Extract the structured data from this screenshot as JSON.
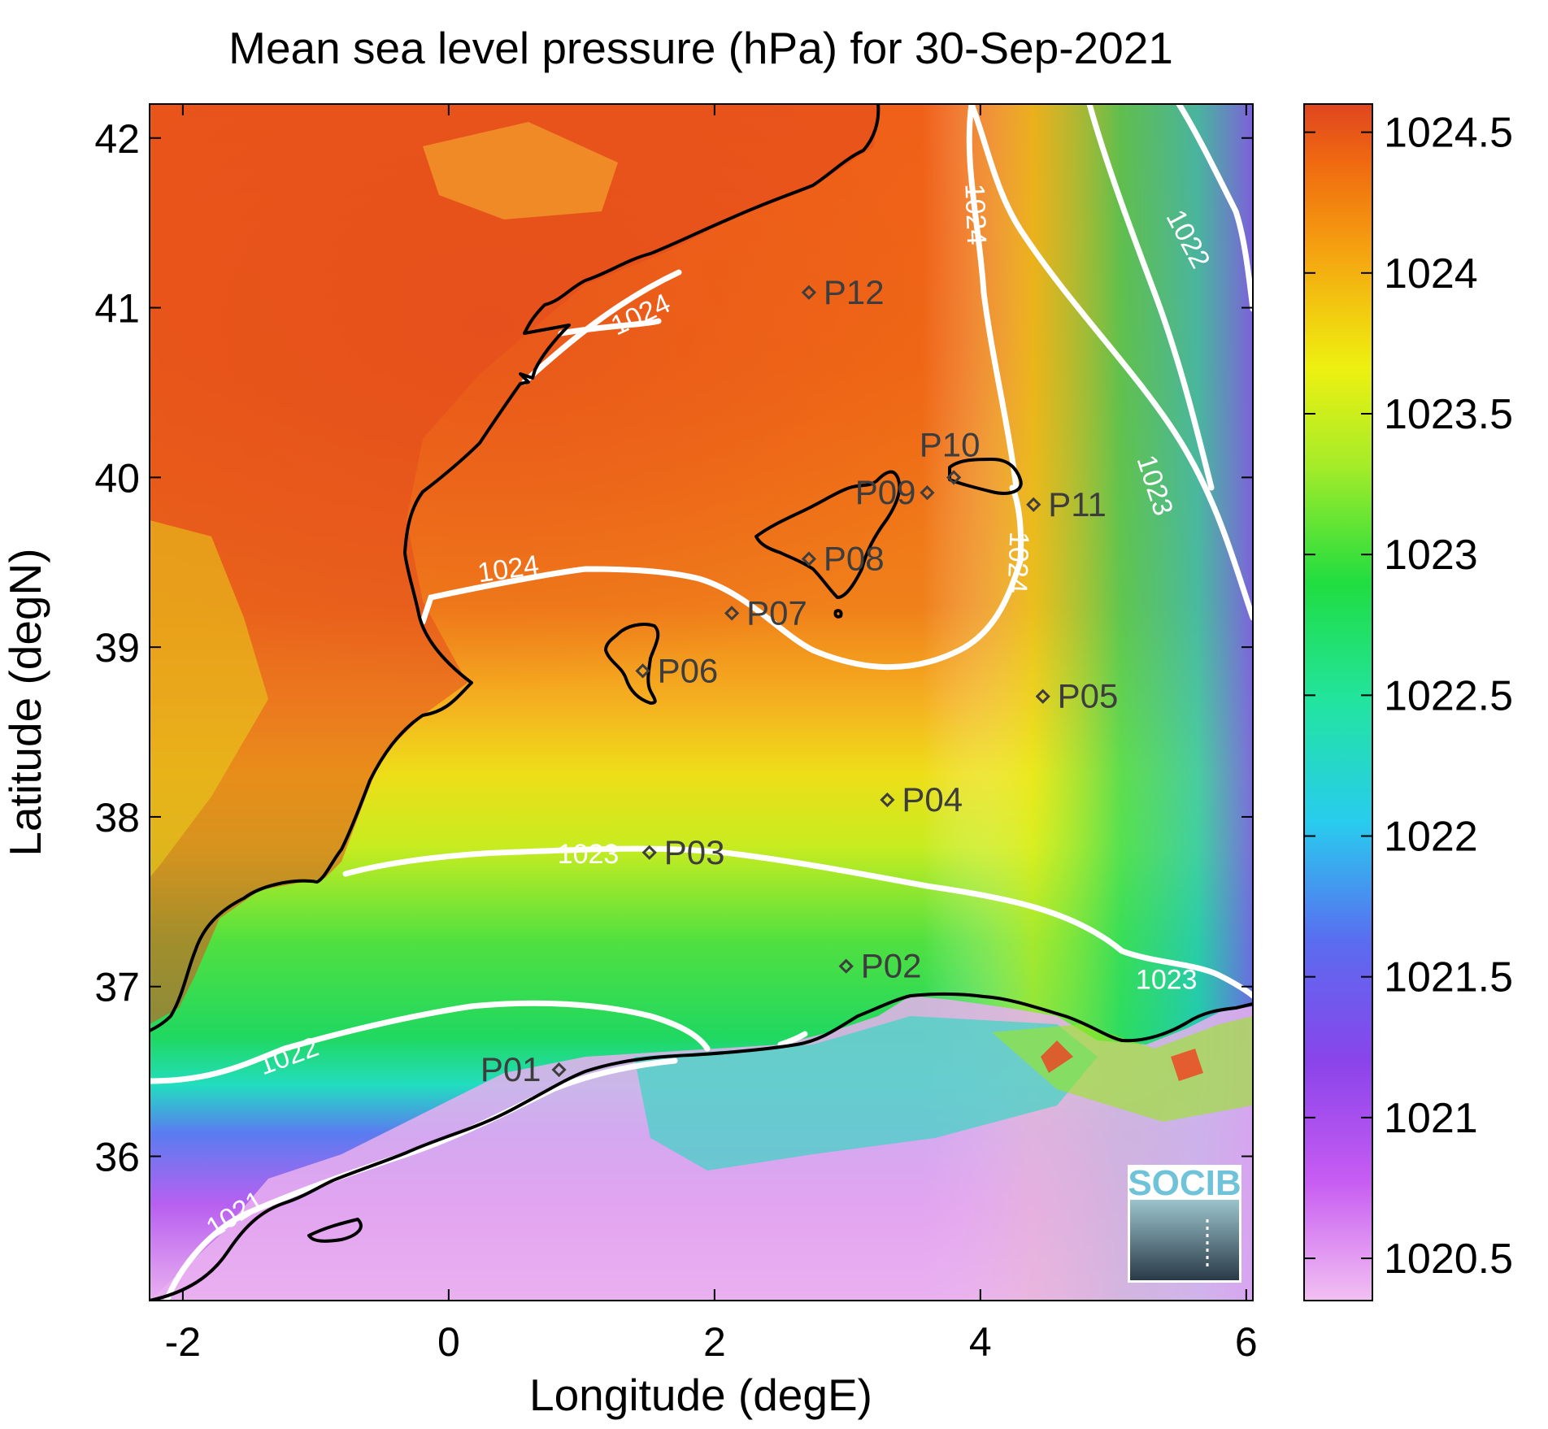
{
  "title": "Mean sea level pressure (hPa) for 30-Sep-2021",
  "xaxis": {
    "label": "Longitude (degE)",
    "ticks": [
      -2,
      0,
      2,
      4,
      6
    ],
    "tick_labels": [
      "-2",
      "0",
      "2",
      "4",
      "6"
    ],
    "range": [
      -2.25,
      6.05
    ]
  },
  "yaxis": {
    "label": "Latitude (degN)",
    "ticks": [
      36,
      37,
      38,
      39,
      40,
      41,
      42
    ],
    "tick_labels": [
      "36",
      "37",
      "38",
      "39",
      "40",
      "41",
      "42"
    ],
    "range": [
      35.15,
      42.2
    ]
  },
  "colorbar": {
    "range": [
      1020.35,
      1024.6
    ],
    "ticks": [
      1020.5,
      1021,
      1021.5,
      1022,
      1022.5,
      1023,
      1023.5,
      1024,
      1024.5
    ],
    "tick_labels": [
      "1020.5",
      "1021",
      "1021.5",
      "1022",
      "1022.5",
      "1023",
      "1023.5",
      "1024",
      "1024.5"
    ],
    "colormap": [
      "#f2c0f2",
      "#c75cf2",
      "#7b3fe6",
      "#4a7cf0",
      "#22ddee",
      "#20dd50",
      "#6ee830",
      "#eef010",
      "#f5a010",
      "#f06a10",
      "#e04520"
    ]
  },
  "stations": [
    {
      "name": "P01",
      "lon": 0.83,
      "lat": 36.51
    },
    {
      "name": "P02",
      "lon": 2.99,
      "lat": 37.12
    },
    {
      "name": "P03",
      "lon": 1.51,
      "lat": 37.79
    },
    {
      "name": "P04",
      "lon": 3.3,
      "lat": 38.1
    },
    {
      "name": "P05",
      "lon": 4.47,
      "lat": 38.71
    },
    {
      "name": "P06",
      "lon": 1.46,
      "lat": 38.86
    },
    {
      "name": "P07",
      "lon": 2.13,
      "lat": 39.2
    },
    {
      "name": "P08",
      "lon": 2.71,
      "lat": 39.52
    },
    {
      "name": "P09",
      "lon": 3.6,
      "lat": 39.91
    },
    {
      "name": "P10",
      "lon": 3.8,
      "lat": 40.0
    },
    {
      "name": "P11",
      "lon": 4.4,
      "lat": 39.84
    },
    {
      "name": "P12",
      "lon": 2.71,
      "lat": 41.09
    }
  ],
  "contour_labels": [
    {
      "text": "1024",
      "lon": 1.45,
      "lat": 40.95,
      "rot": -25
    },
    {
      "text": "1024",
      "lon": 3.95,
      "lat": 41.55,
      "rot": 88
    },
    {
      "text": "1022",
      "lon": 5.55,
      "lat": 41.4,
      "rot": 62
    },
    {
      "text": "1024",
      "lon": 0.45,
      "lat": 39.45,
      "rot": -8
    },
    {
      "text": "1024",
      "lon": 4.27,
      "lat": 39.5,
      "rot": 92
    },
    {
      "text": "1023",
      "lon": 5.3,
      "lat": 39.95,
      "rot": 72
    },
    {
      "text": "1023",
      "lon": 1.05,
      "lat": 37.77,
      "rot": 0
    },
    {
      "text": "1023",
      "lon": 5.4,
      "lat": 37.03,
      "rot": 0
    },
    {
      "text": "1022",
      "lon": -1.2,
      "lat": 36.58,
      "rot": -20
    },
    {
      "text": "1021",
      "lon": -1.6,
      "lat": 35.65,
      "rot": -32
    }
  ],
  "logo": {
    "text": "SOCIB"
  },
  "icons": {
    "station_marker": "diamond-marker-icon",
    "logo": "socib-logo-icon"
  }
}
